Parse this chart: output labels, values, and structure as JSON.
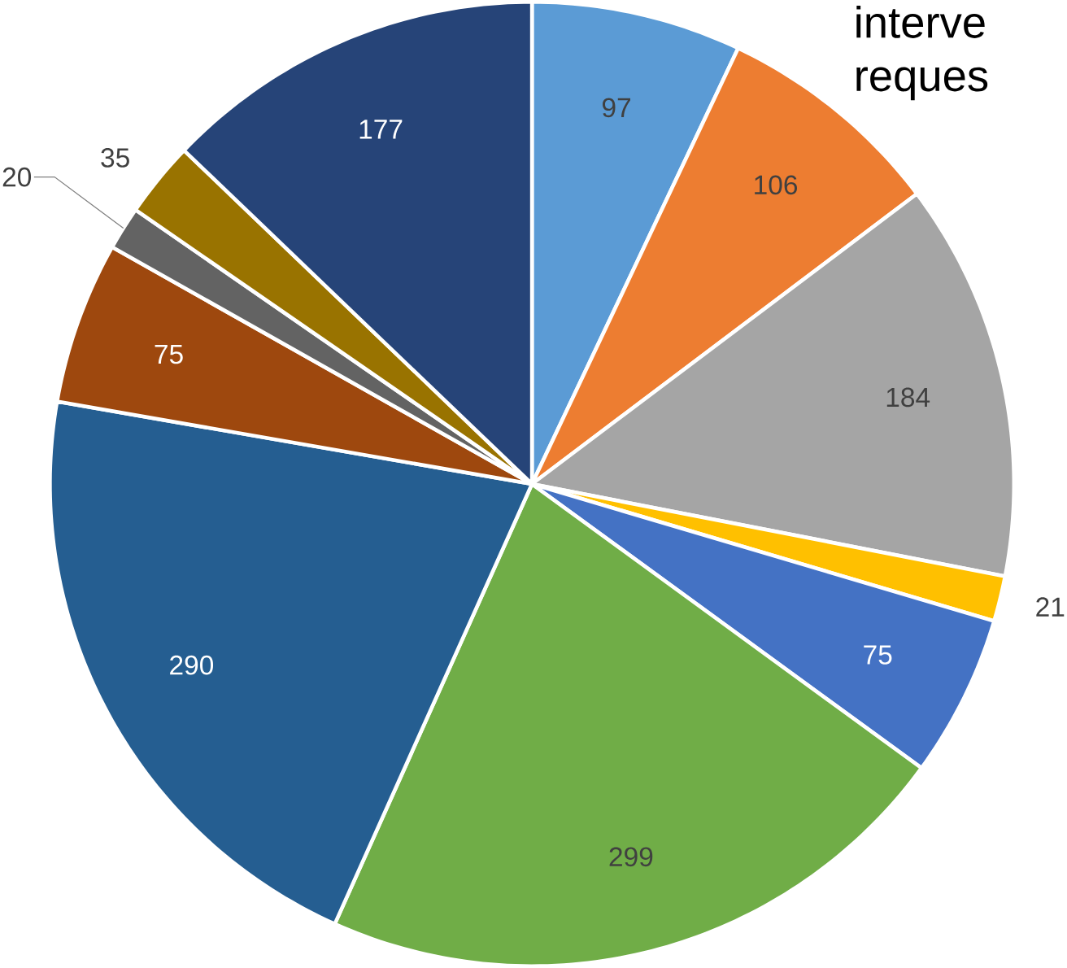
{
  "chart_data": {
    "type": "pie",
    "categories": [
      null,
      null,
      null,
      null,
      null,
      null,
      null,
      null,
      null,
      null,
      null
    ],
    "values": [
      97,
      106,
      184,
      21,
      75,
      299,
      290,
      75,
      20,
      35,
      177
    ],
    "colors": [
      "#5b9bd5",
      "#ed7d31",
      "#a5a5a5",
      "#ffc000",
      "#4472c4",
      "#70ad47",
      "#255e91",
      "#9e480e",
      "#636363",
      "#997300",
      "#264478"
    ],
    "data_labels": true,
    "annotations": [
      "interve",
      "reques"
    ]
  }
}
